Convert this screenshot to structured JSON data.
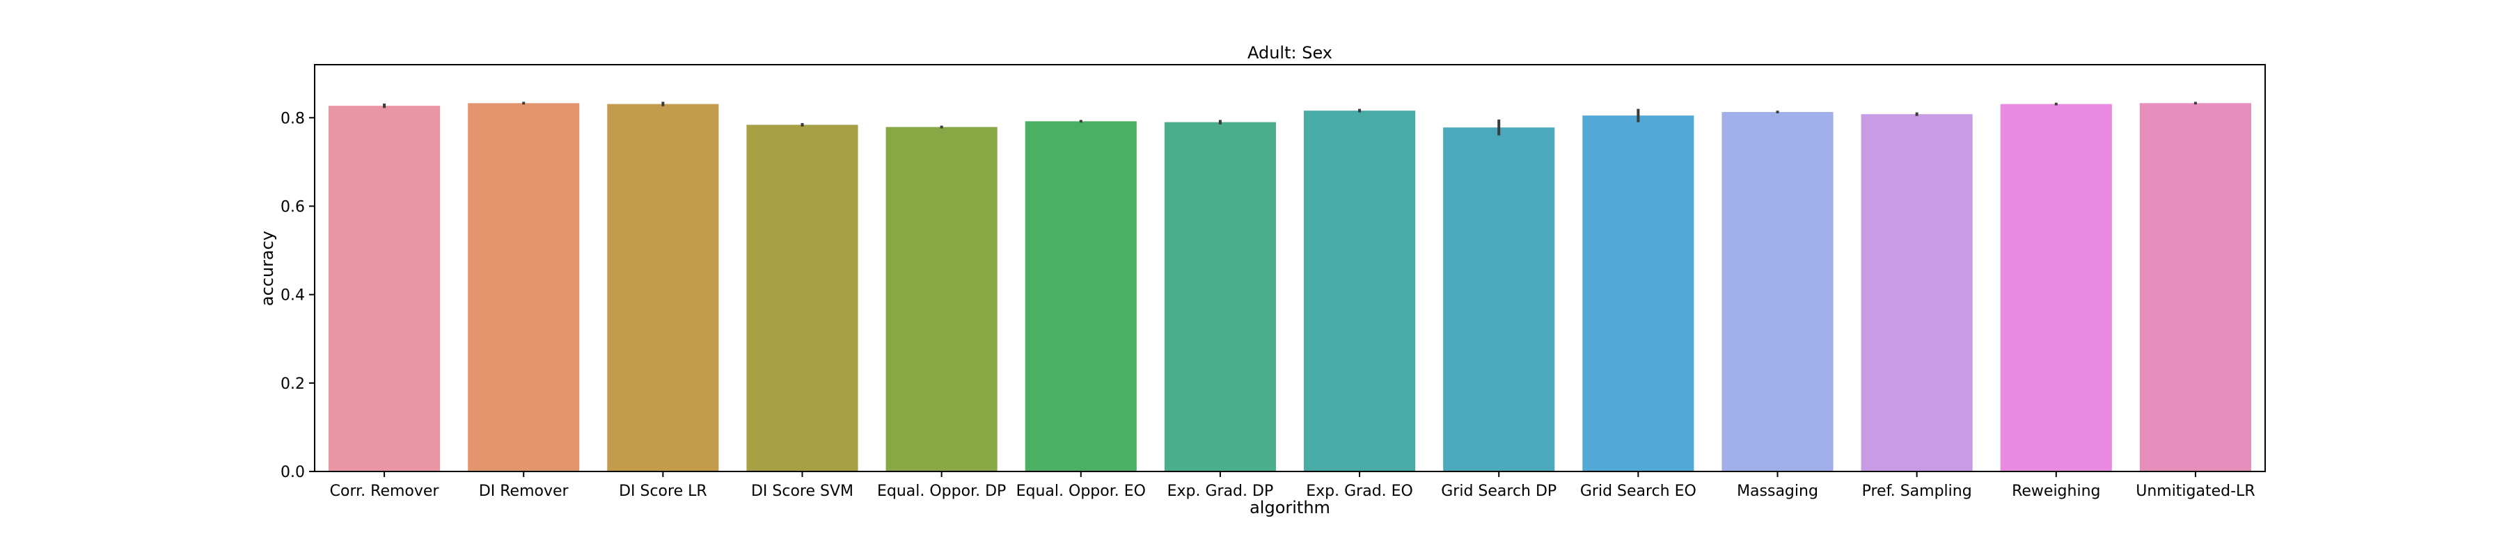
{
  "chart_data": {
    "type": "bar",
    "title": "Adult: Sex",
    "xlabel": "algorithm",
    "ylabel": "accuracy",
    "ylim": [
      0,
      0.92
    ],
    "yticks": [
      "0.0",
      "0.2",
      "0.4",
      "0.6",
      "0.8"
    ],
    "grid": false,
    "categories": [
      "Corr. Remover",
      "DI Remover",
      "DI Score LR",
      "DI Score SVM",
      "Equal. Oppor. DP",
      "Equal. Oppor. EO",
      "Exp. Grad. DP",
      "Exp. Grad. EO",
      "Grid Search DP",
      "Grid Search EO",
      "Massaging",
      "Pref. Sampling",
      "Reweighing",
      "Unmitigated-LR"
    ],
    "values": [
      0.827,
      0.833,
      0.831,
      0.784,
      0.779,
      0.792,
      0.79,
      0.816,
      0.778,
      0.805,
      0.813,
      0.808,
      0.831,
      0.833
    ],
    "errors": [
      [
        0.822,
        0.832
      ],
      [
        0.83,
        0.836
      ],
      [
        0.826,
        0.836
      ],
      [
        0.78,
        0.788
      ],
      [
        0.776,
        0.782
      ],
      [
        0.789,
        0.795
      ],
      [
        0.785,
        0.795
      ],
      [
        0.812,
        0.82
      ],
      [
        0.76,
        0.796
      ],
      [
        0.79,
        0.82
      ],
      [
        0.81,
        0.816
      ],
      [
        0.804,
        0.812
      ],
      [
        0.828,
        0.834
      ],
      [
        0.83,
        0.836
      ]
    ],
    "colors": [
      "#e995a3",
      "#e3956e",
      "#c29b4d",
      "#a6a145",
      "#88a846",
      "#4cb062",
      "#4aae8a",
      "#49aba6",
      "#4ba9bb",
      "#52a9d7",
      "#a0aee9",
      "#c89be5",
      "#e88ae0",
      "#e68fbc"
    ]
  }
}
